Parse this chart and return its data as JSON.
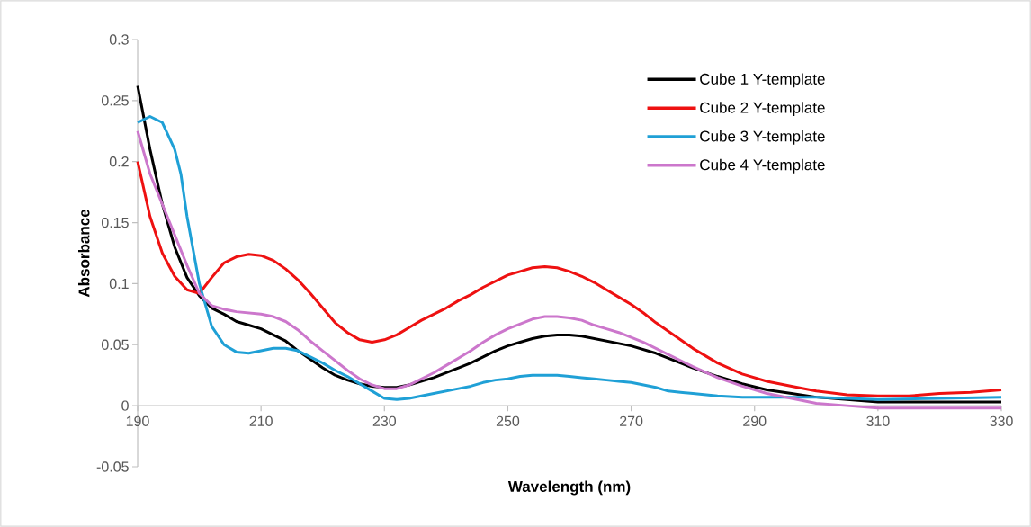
{
  "chart_data": {
    "type": "line",
    "xlabel": "Wavelength (nm)",
    "ylabel": "Absorbance",
    "xlim": [
      190,
      330
    ],
    "xticks": [
      190,
      210,
      230,
      250,
      270,
      290,
      310,
      330
    ],
    "ylim": [
      -0.05,
      0.3
    ],
    "yticks": [
      -0.05,
      0,
      0.05,
      0.1,
      0.15,
      0.2,
      0.25,
      0.3
    ],
    "grid": false,
    "legend": "top right",
    "marker": "none",
    "line_style": "solid",
    "series": [
      {
        "name": "Cube 1 Y-template",
        "color": "#000000",
        "x": [
          190,
          192,
          194,
          196,
          198,
          200,
          202,
          204,
          206,
          208,
          210,
          212,
          214,
          216,
          218,
          220,
          222,
          224,
          226,
          228,
          230,
          232,
          234,
          236,
          238,
          240,
          242,
          244,
          246,
          248,
          250,
          252,
          254,
          256,
          258,
          260,
          262,
          264,
          266,
          268,
          270,
          272,
          274,
          276,
          278,
          280,
          284,
          288,
          292,
          296,
          300,
          305,
          310,
          320,
          330
        ],
        "values": [
          0.262,
          0.21,
          0.165,
          0.13,
          0.105,
          0.09,
          0.08,
          0.075,
          0.069,
          0.066,
          0.063,
          0.058,
          0.053,
          0.045,
          0.038,
          0.031,
          0.025,
          0.021,
          0.018,
          0.016,
          0.015,
          0.015,
          0.017,
          0.02,
          0.023,
          0.027,
          0.031,
          0.035,
          0.04,
          0.045,
          0.049,
          0.052,
          0.055,
          0.057,
          0.058,
          0.058,
          0.057,
          0.055,
          0.053,
          0.051,
          0.049,
          0.046,
          0.043,
          0.039,
          0.035,
          0.031,
          0.024,
          0.018,
          0.013,
          0.01,
          0.007,
          0.005,
          0.003,
          0.003,
          0.003
        ]
      },
      {
        "name": "Cube 2 Y-template",
        "color": "#ee1111",
        "x": [
          190,
          192,
          194,
          196,
          198,
          200,
          202,
          204,
          206,
          208,
          210,
          212,
          214,
          216,
          218,
          220,
          222,
          224,
          226,
          228,
          230,
          232,
          234,
          236,
          238,
          240,
          242,
          244,
          246,
          248,
          250,
          252,
          254,
          256,
          258,
          260,
          262,
          264,
          266,
          268,
          270,
          272,
          274,
          276,
          278,
          280,
          284,
          288,
          292,
          296,
          300,
          305,
          310,
          315,
          320,
          325,
          330
        ],
        "values": [
          0.2,
          0.155,
          0.125,
          0.106,
          0.095,
          0.092,
          0.105,
          0.117,
          0.122,
          0.124,
          0.123,
          0.119,
          0.112,
          0.103,
          0.092,
          0.08,
          0.068,
          0.06,
          0.054,
          0.052,
          0.054,
          0.058,
          0.064,
          0.07,
          0.075,
          0.08,
          0.086,
          0.091,
          0.097,
          0.102,
          0.107,
          0.11,
          0.113,
          0.114,
          0.113,
          0.11,
          0.106,
          0.101,
          0.095,
          0.089,
          0.083,
          0.076,
          0.068,
          0.061,
          0.054,
          0.047,
          0.035,
          0.026,
          0.02,
          0.016,
          0.012,
          0.009,
          0.008,
          0.008,
          0.01,
          0.011,
          0.013
        ]
      },
      {
        "name": "Cube 3 Y-template",
        "color": "#1fa0d6",
        "x": [
          190,
          192,
          194,
          196,
          197,
          198,
          200,
          202,
          204,
          206,
          208,
          210,
          212,
          214,
          216,
          218,
          220,
          222,
          224,
          226,
          228,
          230,
          232,
          234,
          236,
          238,
          240,
          242,
          244,
          246,
          248,
          250,
          252,
          254,
          256,
          258,
          260,
          262,
          264,
          266,
          268,
          270,
          272,
          274,
          276,
          278,
          280,
          284,
          288,
          292,
          300,
          310,
          320,
          330
        ],
        "values": [
          0.232,
          0.237,
          0.232,
          0.21,
          0.19,
          0.155,
          0.1,
          0.065,
          0.05,
          0.044,
          0.043,
          0.045,
          0.047,
          0.047,
          0.045,
          0.04,
          0.035,
          0.029,
          0.024,
          0.018,
          0.012,
          0.006,
          0.005,
          0.006,
          0.008,
          0.01,
          0.012,
          0.014,
          0.016,
          0.019,
          0.021,
          0.022,
          0.024,
          0.025,
          0.025,
          0.025,
          0.024,
          0.023,
          0.022,
          0.021,
          0.02,
          0.019,
          0.017,
          0.015,
          0.012,
          0.011,
          0.01,
          0.008,
          0.007,
          0.007,
          0.007,
          0.005,
          0.006,
          0.007
        ]
      },
      {
        "name": "Cube 4 Y-template",
        "color": "#cc77cc",
        "x": [
          190,
          192,
          194,
          196,
          198,
          200,
          202,
          204,
          206,
          208,
          210,
          212,
          214,
          216,
          218,
          220,
          222,
          224,
          226,
          228,
          230,
          232,
          234,
          236,
          238,
          240,
          242,
          244,
          246,
          248,
          250,
          252,
          254,
          256,
          258,
          260,
          262,
          264,
          266,
          268,
          270,
          272,
          274,
          276,
          278,
          280,
          284,
          288,
          292,
          296,
          300,
          305,
          310,
          315,
          320,
          330
        ],
        "values": [
          0.225,
          0.19,
          0.165,
          0.14,
          0.115,
          0.092,
          0.082,
          0.079,
          0.077,
          0.076,
          0.075,
          0.073,
          0.069,
          0.062,
          0.053,
          0.045,
          0.037,
          0.029,
          0.022,
          0.017,
          0.014,
          0.014,
          0.017,
          0.022,
          0.027,
          0.033,
          0.039,
          0.045,
          0.052,
          0.058,
          0.063,
          0.067,
          0.071,
          0.073,
          0.073,
          0.072,
          0.07,
          0.066,
          0.063,
          0.06,
          0.056,
          0.052,
          0.047,
          0.042,
          0.037,
          0.032,
          0.023,
          0.016,
          0.01,
          0.006,
          0.002,
          0,
          -0.002,
          -0.002,
          -0.002,
          -0.002
        ]
      }
    ]
  }
}
